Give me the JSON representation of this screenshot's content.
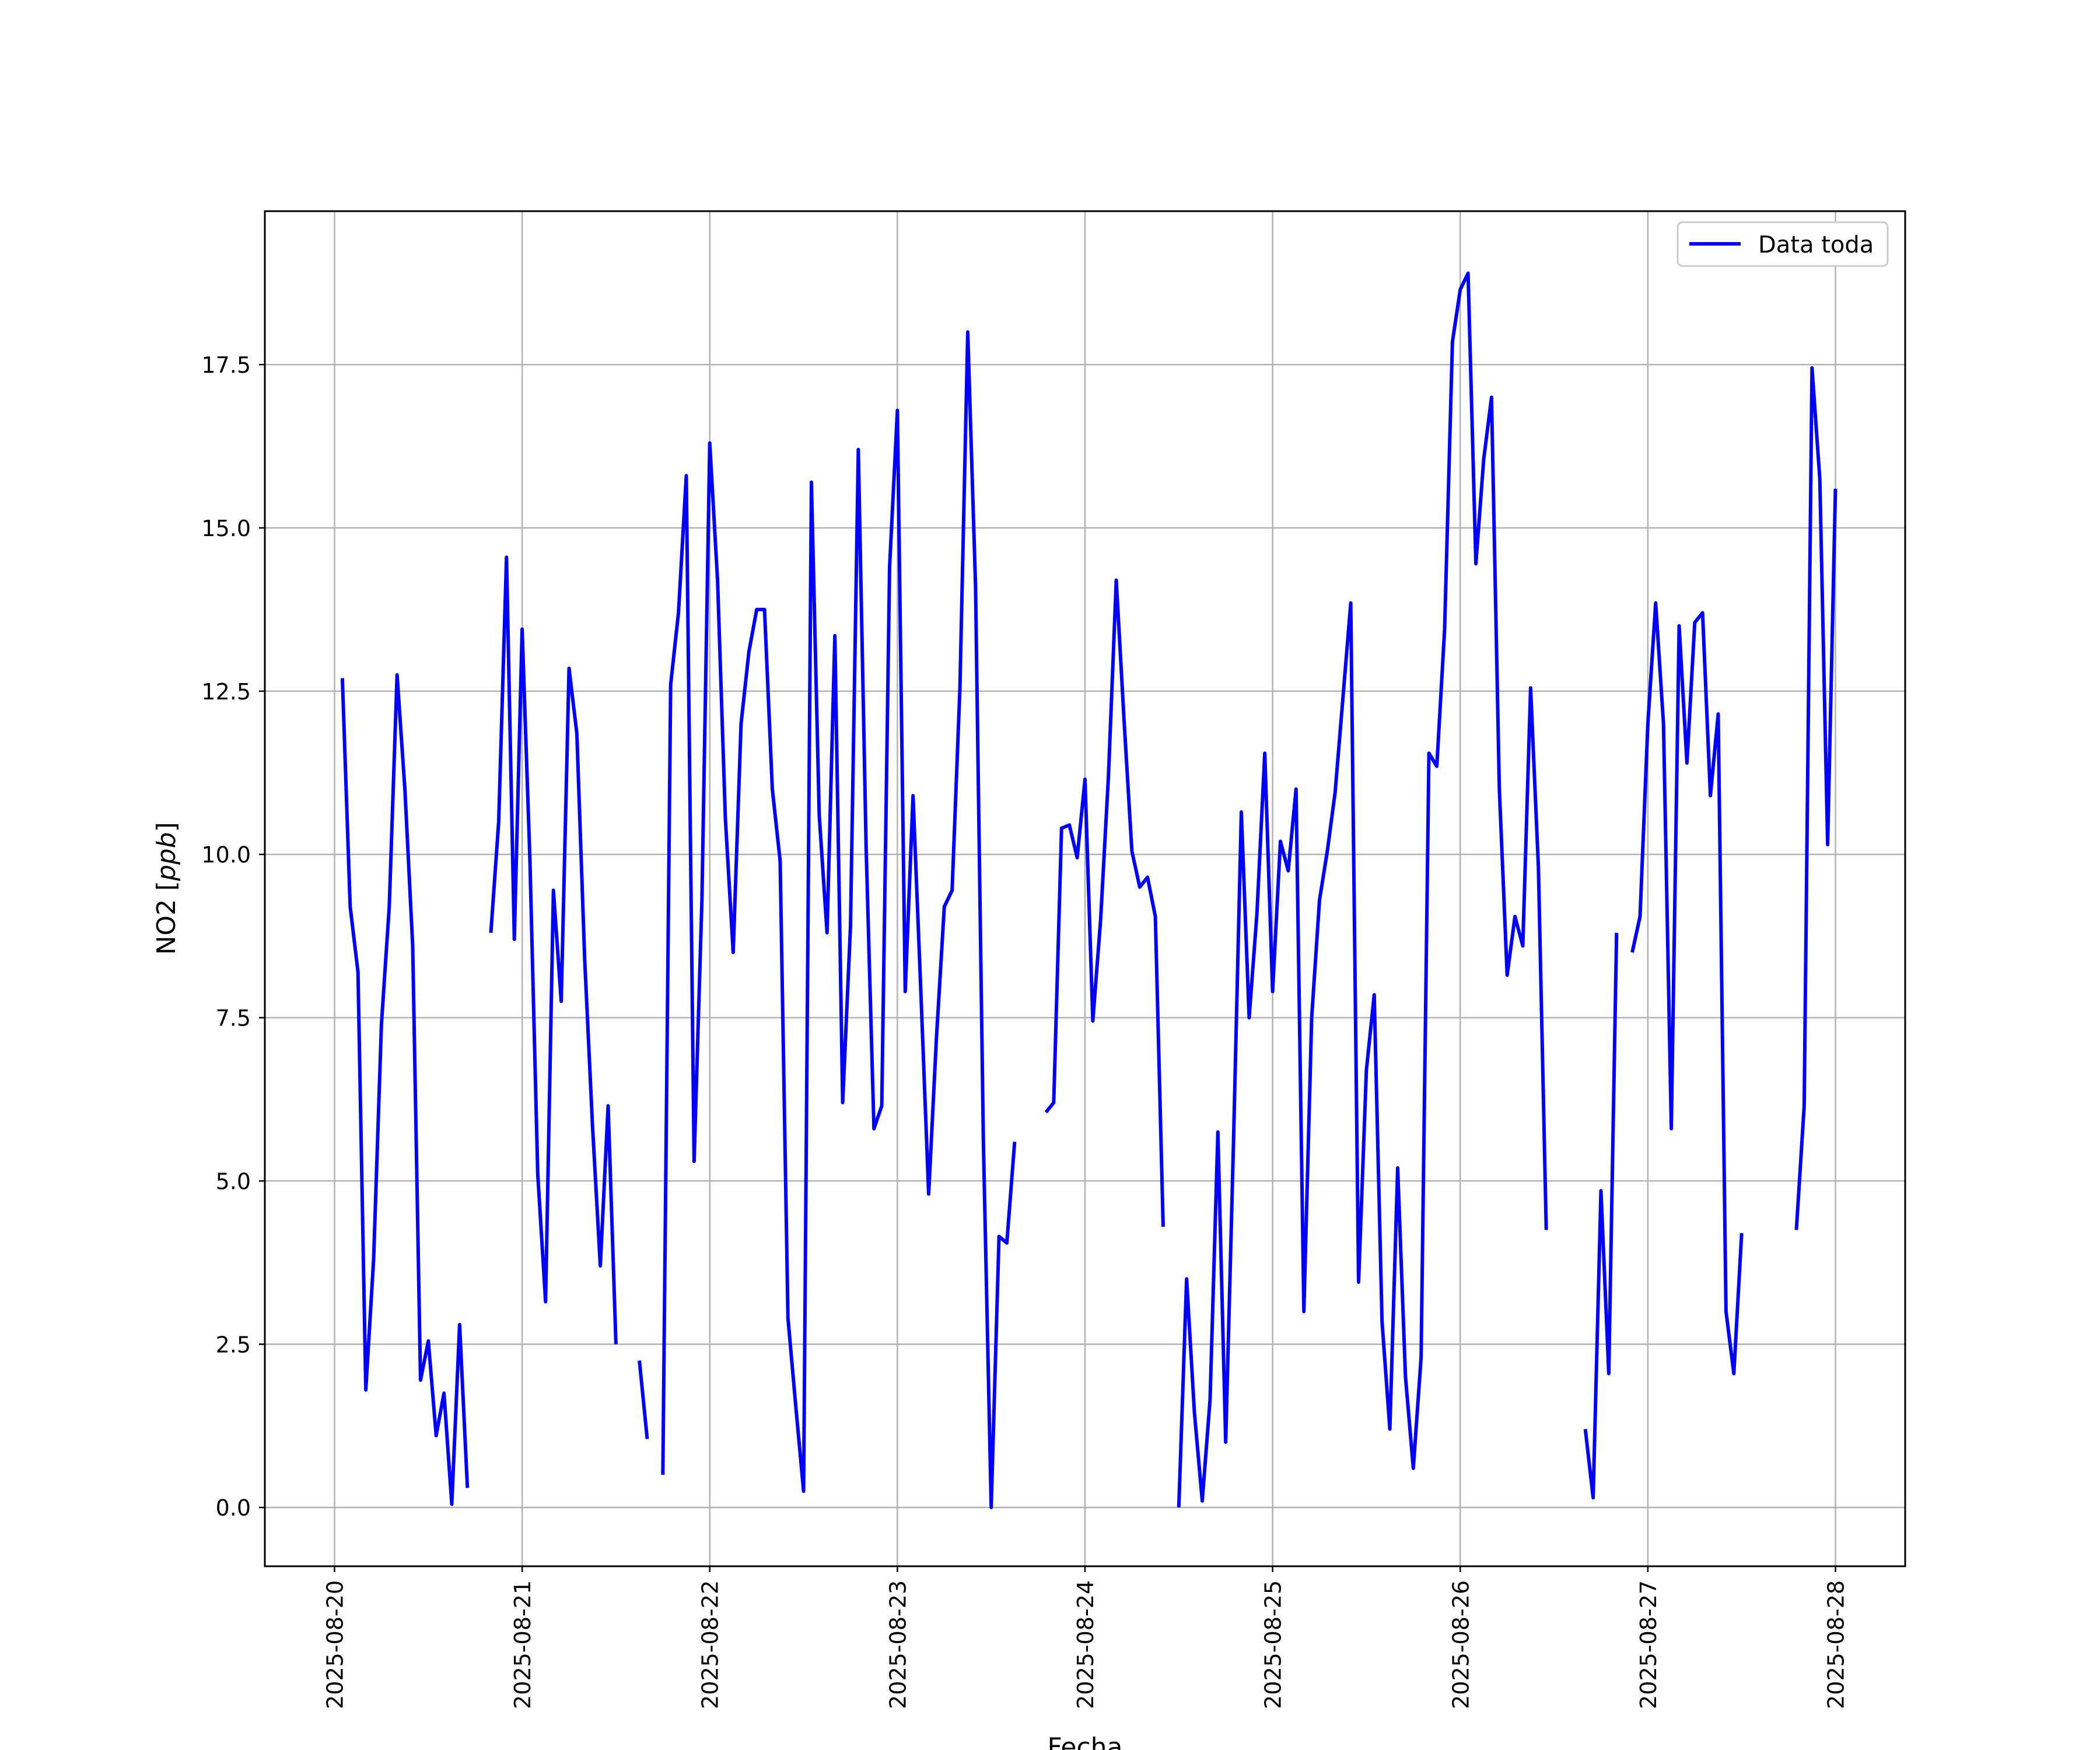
{
  "chart_data": {
    "type": "line",
    "title": "",
    "xlabel": "Fecha",
    "ylabel": "NO2 [ppb]",
    "ylabel_parts": {
      "plain": "NO2 [",
      "italic": "ppb",
      "close": "]"
    },
    "x_ticks": [
      "2025-08-20",
      "2025-08-21",
      "2025-08-22",
      "2025-08-23",
      "2025-08-24",
      "2025-08-25",
      "2025-08-26",
      "2025-08-27",
      "2025-08-28"
    ],
    "y_ticks": [
      "0.0",
      "2.5",
      "5.0",
      "7.5",
      "10.0",
      "12.5",
      "15.0",
      "17.5"
    ],
    "xlim": [
      "2025-08-19 15:05",
      "2025-08-28 08:55"
    ],
    "ylim": [
      -0.9,
      19.85
    ],
    "grid": true,
    "legend_position": "top-right",
    "series": [
      {
        "name": "Data toda",
        "color": "#0000ff",
        "segments": [
          [
            [
              "2025-08-20 01:00",
              12.7
            ],
            [
              "2025-08-20 02:00",
              9.2
            ],
            [
              "2025-08-20 03:00",
              8.2
            ],
            [
              "2025-08-20 04:00",
              1.8
            ],
            [
              "2025-08-20 05:00",
              3.8
            ],
            [
              "2025-08-20 06:00",
              7.4
            ],
            [
              "2025-08-20 07:00",
              9.2
            ],
            [
              "2025-08-20 08:00",
              12.75
            ],
            [
              "2025-08-20 09:00",
              11.0
            ],
            [
              "2025-08-20 10:00",
              8.6
            ],
            [
              "2025-08-20 11:00",
              1.95
            ],
            [
              "2025-08-20 12:00",
              2.55
            ],
            [
              "2025-08-20 13:00",
              1.1
            ],
            [
              "2025-08-20 14:00",
              1.75
            ],
            [
              "2025-08-20 15:00",
              0.05
            ],
            [
              "2025-08-20 16:00",
              2.8
            ],
            [
              "2025-08-20 17:00",
              0.3
            ]
          ],
          [
            [
              "2025-08-20 20:00",
              8.8
            ],
            [
              "2025-08-20 21:00",
              10.5
            ],
            [
              "2025-08-20 22:00",
              14.55
            ],
            [
              "2025-08-20 23:00",
              8.7
            ],
            [
              "2025-08-21 00:00",
              13.45
            ],
            [
              "2025-08-21 01:00",
              9.9
            ],
            [
              "2025-08-21 02:00",
              5.1
            ],
            [
              "2025-08-21 03:00",
              3.15
            ],
            [
              "2025-08-21 04:00",
              9.45
            ],
            [
              "2025-08-21 05:00",
              7.75
            ],
            [
              "2025-08-21 06:00",
              12.85
            ],
            [
              "2025-08-21 07:00",
              11.85
            ],
            [
              "2025-08-21 08:00",
              8.4
            ],
            [
              "2025-08-21 09:00",
              5.85
            ],
            [
              "2025-08-21 10:00",
              3.7
            ],
            [
              "2025-08-21 11:00",
              6.15
            ],
            [
              "2025-08-21 12:00",
              2.5
            ]
          ],
          [
            [
              "2025-08-21 15:00",
              2.25
            ],
            [
              "2025-08-21 16:00",
              1.05
            ]
          ],
          [
            [
              "2025-08-21 18:00",
              0.5
            ],
            [
              "2025-08-21 19:00",
              12.6
            ],
            [
              "2025-08-21 20:00",
              13.7
            ],
            [
              "2025-08-21 21:00",
              15.8
            ],
            [
              "2025-08-21 22:00",
              5.3
            ],
            [
              "2025-08-21 23:00",
              9.3
            ],
            [
              "2025-08-22 00:00",
              16.3
            ],
            [
              "2025-08-22 01:00",
              14.2
            ],
            [
              "2025-08-22 02:00",
              10.55
            ],
            [
              "2025-08-22 03:00",
              8.5
            ],
            [
              "2025-08-22 04:00",
              12.0
            ],
            [
              "2025-08-22 05:00",
              13.1
            ],
            [
              "2025-08-22 06:00",
              13.75
            ],
            [
              "2025-08-22 07:00",
              13.75
            ],
            [
              "2025-08-22 08:00",
              11.0
            ],
            [
              "2025-08-22 09:00",
              9.9
            ],
            [
              "2025-08-22 10:00",
              2.9
            ],
            [
              "2025-08-22 11:00",
              1.55
            ],
            [
              "2025-08-22 12:00",
              0.25
            ],
            [
              "2025-08-22 13:00",
              15.7
            ],
            [
              "2025-08-22 14:00",
              10.6
            ],
            [
              "2025-08-22 15:00",
              8.8
            ],
            [
              "2025-08-22 16:00",
              13.35
            ],
            [
              "2025-08-22 17:00",
              6.2
            ],
            [
              "2025-08-22 18:00",
              8.9
            ],
            [
              "2025-08-22 19:00",
              16.2
            ],
            [
              "2025-08-22 20:00",
              10.1
            ],
            [
              "2025-08-22 21:00",
              5.8
            ],
            [
              "2025-08-22 22:00",
              6.15
            ],
            [
              "2025-08-22 23:00",
              14.4
            ],
            [
              "2025-08-23 00:00",
              16.8
            ],
            [
              "2025-08-23 01:00",
              7.9
            ],
            [
              "2025-08-23 02:00",
              10.9
            ],
            [
              "2025-08-23 03:00",
              7.9
            ],
            [
              "2025-08-23 04:00",
              4.8
            ],
            [
              "2025-08-23 05:00",
              7.2
            ],
            [
              "2025-08-23 06:00",
              9.2
            ],
            [
              "2025-08-23 07:00",
              9.45
            ],
            [
              "2025-08-23 08:00",
              12.55
            ],
            [
              "2025-08-23 09:00",
              18.0
            ],
            [
              "2025-08-23 10:00",
              14.1
            ],
            [
              "2025-08-23 11:00",
              5.6
            ],
            [
              "2025-08-23 12:00",
              0.0
            ],
            [
              "2025-08-23 13:00",
              4.15
            ],
            [
              "2025-08-23 14:00",
              4.05
            ],
            [
              "2025-08-23 15:00",
              5.6
            ]
          ],
          [
            [
              "2025-08-23 19:00",
              6.05
            ],
            [
              "2025-08-23 20:00",
              6.2
            ],
            [
              "2025-08-23 21:00",
              10.4
            ],
            [
              "2025-08-23 22:00",
              10.45
            ],
            [
              "2025-08-23 23:00",
              9.95
            ],
            [
              "2025-08-24 00:00",
              11.15
            ],
            [
              "2025-08-24 01:00",
              7.45
            ],
            [
              "2025-08-24 02:00",
              9.0
            ],
            [
              "2025-08-24 03:00",
              11.2
            ],
            [
              "2025-08-24 04:00",
              14.2
            ],
            [
              "2025-08-24 05:00",
              12.05
            ],
            [
              "2025-08-24 06:00",
              10.05
            ],
            [
              "2025-08-24 07:00",
              9.5
            ],
            [
              "2025-08-24 08:00",
              9.65
            ],
            [
              "2025-08-24 09:00",
              9.05
            ],
            [
              "2025-08-24 10:00",
              4.3
            ]
          ],
          [
            [
              "2025-08-24 12:00",
              0.0
            ],
            [
              "2025-08-24 13:00",
              3.5
            ],
            [
              "2025-08-24 14:00",
              1.45
            ],
            [
              "2025-08-24 15:00",
              0.1
            ],
            [
              "2025-08-24 16:00",
              1.65
            ],
            [
              "2025-08-24 17:00",
              5.75
            ],
            [
              "2025-08-24 18:00",
              1.0
            ],
            [
              "2025-08-24 19:00",
              5.6
            ],
            [
              "2025-08-24 20:00",
              10.65
            ],
            [
              "2025-08-24 21:00",
              7.5
            ],
            [
              "2025-08-24 22:00",
              9.1
            ],
            [
              "2025-08-24 23:00",
              11.55
            ],
            [
              "2025-08-25 00:00",
              7.9
            ],
            [
              "2025-08-25 01:00",
              10.2
            ],
            [
              "2025-08-25 02:00",
              9.75
            ],
            [
              "2025-08-25 03:00",
              11.0
            ],
            [
              "2025-08-25 04:00",
              3.0
            ],
            [
              "2025-08-25 05:00",
              7.5
            ],
            [
              "2025-08-25 06:00",
              9.3
            ],
            [
              "2025-08-25 07:00",
              10.05
            ],
            [
              "2025-08-25 08:00",
              10.95
            ],
            [
              "2025-08-25 09:00",
              12.4
            ],
            [
              "2025-08-25 10:00",
              13.85
            ],
            [
              "2025-08-25 11:00",
              3.45
            ],
            [
              "2025-08-25 12:00",
              6.7
            ],
            [
              "2025-08-25 13:00",
              7.85
            ],
            [
              "2025-08-25 14:00",
              2.85
            ],
            [
              "2025-08-25 15:00",
              1.2
            ],
            [
              "2025-08-25 16:00",
              5.2
            ],
            [
              "2025-08-25 17:00",
              2.0
            ],
            [
              "2025-08-25 18:00",
              0.6
            ],
            [
              "2025-08-25 19:00",
              2.3
            ],
            [
              "2025-08-25 20:00",
              11.55
            ],
            [
              "2025-08-25 21:00",
              11.35
            ],
            [
              "2025-08-25 22:00",
              13.45
            ],
            [
              "2025-08-25 23:00",
              17.85
            ],
            [
              "2025-08-26 00:00",
              18.65
            ],
            [
              "2025-08-26 01:00",
              18.9
            ],
            [
              "2025-08-26 02:00",
              14.45
            ],
            [
              "2025-08-26 03:00",
              16.05
            ],
            [
              "2025-08-26 04:00",
              17.0
            ],
            [
              "2025-08-26 05:00",
              11.0
            ],
            [
              "2025-08-26 06:00",
              8.15
            ],
            [
              "2025-08-26 07:00",
              9.05
            ],
            [
              "2025-08-26 08:00",
              8.6
            ],
            [
              "2025-08-26 09:00",
              12.55
            ],
            [
              "2025-08-26 10:00",
              9.8
            ],
            [
              "2025-08-26 11:00",
              4.25
            ]
          ],
          [
            [
              "2025-08-26 16:00",
              1.2
            ],
            [
              "2025-08-26 17:00",
              0.15
            ],
            [
              "2025-08-26 18:00",
              4.85
            ],
            [
              "2025-08-26 19:00",
              2.05
            ],
            [
              "2025-08-26 20:00",
              8.8
            ]
          ],
          [
            [
              "2025-08-26 22:00",
              8.5
            ],
            [
              "2025-08-26 23:00",
              9.05
            ],
            [
              "2025-08-27 00:00",
              12.0
            ],
            [
              "2025-08-27 01:00",
              13.85
            ],
            [
              "2025-08-27 02:00",
              12.0
            ],
            [
              "2025-08-27 03:00",
              5.8
            ],
            [
              "2025-08-27 04:00",
              13.5
            ],
            [
              "2025-08-27 05:00",
              11.4
            ],
            [
              "2025-08-27 06:00",
              13.55
            ],
            [
              "2025-08-27 07:00",
              13.7
            ],
            [
              "2025-08-27 08:00",
              10.9
            ],
            [
              "2025-08-27 09:00",
              12.15
            ],
            [
              "2025-08-27 10:00",
              3.0
            ],
            [
              "2025-08-27 11:00",
              2.05
            ],
            [
              "2025-08-27 12:00",
              4.2
            ]
          ],
          [
            [
              "2025-08-27 19:00",
              4.25
            ],
            [
              "2025-08-27 20:00",
              6.15
            ],
            [
              "2025-08-27 21:00",
              17.45
            ],
            [
              "2025-08-27 22:00",
              15.75
            ],
            [
              "2025-08-27 23:00",
              10.15
            ],
            [
              "2025-08-28 00:00",
              15.6
            ]
          ]
        ]
      }
    ]
  }
}
